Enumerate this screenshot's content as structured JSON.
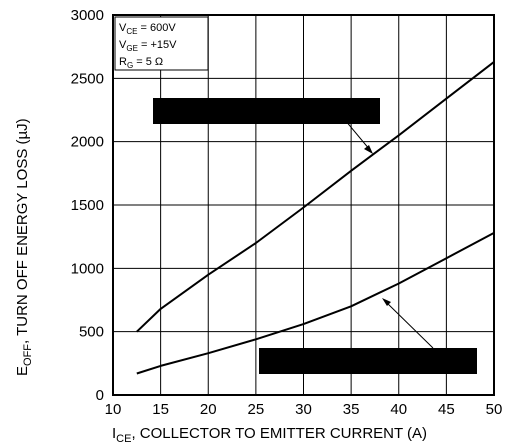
{
  "chart_data": {
    "type": "line",
    "title": "",
    "xlabel_parts": [
      "I",
      "CE",
      ", COLLECTOR TO EMITTER CURRENT (A)"
    ],
    "ylabel_parts": [
      "E",
      "OFF",
      ", TURN OFF  ENERGY  LOSS (µJ)"
    ],
    "xlim": [
      10,
      50
    ],
    "ylim": [
      0,
      3000
    ],
    "xticks": [
      "10",
      "15",
      "20",
      "25",
      "30",
      "35",
      "40",
      "45",
      "50"
    ],
    "yticks": [
      "0",
      "500",
      "1000",
      "1500",
      "2000",
      "2500",
      "3000"
    ],
    "grid": true,
    "conditions": [
      {
        "pre": "V",
        "sub": "CE",
        "post": " =  600V"
      },
      {
        "pre": "V",
        "sub": "GE",
        "post": " =  +15V"
      },
      {
        "pre": "R",
        "sub": "G",
        "post": " = 5 Ω"
      }
    ],
    "series": [
      {
        "name": "",
        "x": [
          12.5,
          15,
          20,
          25,
          30,
          35,
          40,
          45,
          50
        ],
        "y": [
          500,
          680,
          950,
          1200,
          1480,
          1770,
          2050,
          2340,
          2630
        ]
      },
      {
        "name": "",
        "x": [
          12.5,
          15,
          20,
          25,
          30,
          35,
          40,
          45,
          50
        ],
        "y": [
          170,
          230,
          330,
          440,
          560,
          700,
          880,
          1080,
          1280
        ]
      }
    ]
  }
}
